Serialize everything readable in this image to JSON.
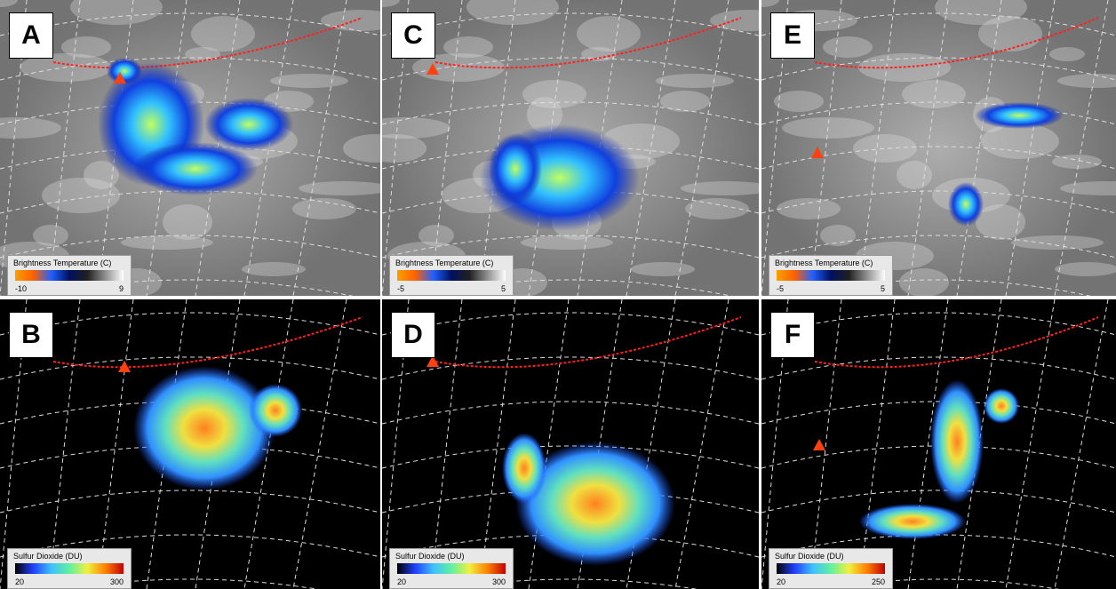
{
  "panels": [
    {
      "label": "A",
      "legend": {
        "title": "Brightness Temperature (C)",
        "min": "-10",
        "max": "9"
      }
    },
    {
      "label": "C",
      "legend": {
        "title": "Brightness Temperature (C)",
        "min": "-5",
        "max": "5"
      }
    },
    {
      "label": "E",
      "legend": {
        "title": "Brightness Temperature (C)",
        "min": "-5",
        "max": "5"
      }
    },
    {
      "label": "B",
      "legend": {
        "title": "Sulfur Dioxide (DU)",
        "min": "20",
        "max": "300"
      }
    },
    {
      "label": "D",
      "legend": {
        "title": "Sulfur Dioxide (DU)",
        "min": "20",
        "max": "300"
      }
    },
    {
      "label": "F",
      "legend": {
        "title": "Sulfur Dioxide (DU)",
        "min": "20",
        "max": "250"
      }
    }
  ]
}
